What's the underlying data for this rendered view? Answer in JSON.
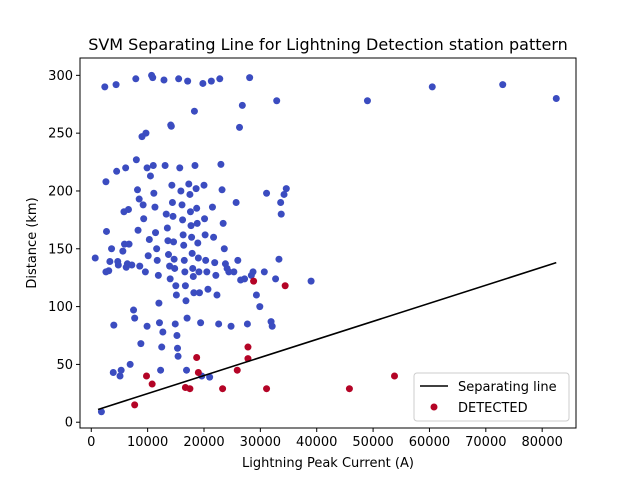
{
  "chart_data": {
    "type": "scatter",
    "title": "SVM Separating Line for Lightning Detection station pattern",
    "xlabel": "Lightning Peak Current (A)",
    "ylabel": "Distance (km)",
    "xlim": [
      -2000,
      86000
    ],
    "ylim": [
      -5,
      315
    ],
    "xticks": [
      0,
      10000,
      20000,
      30000,
      40000,
      50000,
      60000,
      70000,
      80000
    ],
    "yticks": [
      0,
      50,
      100,
      150,
      200,
      250,
      300
    ],
    "grid": false,
    "legend": {
      "position": "bottom-right",
      "entries": [
        "Separating line",
        "DETECTED"
      ]
    },
    "colors": {
      "not_detected": "#3b4cc0",
      "detected": "#b40426",
      "line": "#000000"
    },
    "separating_line": {
      "name": "Separating line",
      "x": [
        1200,
        82500
      ],
      "y": [
        11,
        138
      ]
    },
    "series": [
      {
        "name": "DETECTED",
        "color": "#b40426",
        "points": [
          [
            7700,
            15
          ],
          [
            9800,
            40
          ],
          [
            10800,
            33
          ],
          [
            16700,
            30
          ],
          [
            17500,
            29
          ],
          [
            18700,
            56
          ],
          [
            19000,
            43
          ],
          [
            23300,
            29
          ],
          [
            25900,
            45
          ],
          [
            27800,
            65
          ],
          [
            27800,
            55
          ],
          [
            28800,
            122
          ],
          [
            31100,
            29
          ],
          [
            34400,
            118
          ],
          [
            45800,
            29
          ],
          [
            53800,
            40
          ]
        ]
      },
      {
        "name": "",
        "color": "#3b4cc0",
        "points": [
          [
            1800,
            9
          ],
          [
            700,
            142
          ],
          [
            2400,
            290
          ],
          [
            2600,
            208
          ],
          [
            2700,
            165
          ],
          [
            2600,
            130
          ],
          [
            3100,
            131
          ],
          [
            3300,
            139
          ],
          [
            3600,
            150
          ],
          [
            4000,
            84
          ],
          [
            3900,
            43
          ],
          [
            4400,
            292
          ],
          [
            4500,
            217
          ],
          [
            4700,
            139
          ],
          [
            4800,
            136
          ],
          [
            5100,
            40
          ],
          [
            5300,
            45
          ],
          [
            5600,
            148
          ],
          [
            5800,
            182
          ],
          [
            5900,
            154
          ],
          [
            6100,
            220
          ],
          [
            6200,
            134
          ],
          [
            6400,
            137
          ],
          [
            6600,
            184
          ],
          [
            6700,
            154
          ],
          [
            6900,
            50
          ],
          [
            7200,
            136
          ],
          [
            7500,
            97
          ],
          [
            7700,
            90
          ],
          [
            7900,
            297
          ],
          [
            8000,
            227
          ],
          [
            8200,
            201
          ],
          [
            8300,
            166
          ],
          [
            8500,
            193
          ],
          [
            8600,
            135
          ],
          [
            8800,
            68
          ],
          [
            9000,
            247
          ],
          [
            9200,
            188
          ],
          [
            9300,
            176
          ],
          [
            9600,
            130
          ],
          [
            9700,
            250
          ],
          [
            9900,
            83
          ],
          [
            9900,
            220
          ],
          [
            10100,
            144
          ],
          [
            10300,
            158
          ],
          [
            10500,
            213
          ],
          [
            10700,
            300
          ],
          [
            10900,
            298
          ],
          [
            11000,
            222
          ],
          [
            11100,
            198
          ],
          [
            11300,
            186
          ],
          [
            11400,
            164
          ],
          [
            11600,
            150
          ],
          [
            11700,
            140
          ],
          [
            11900,
            127
          ],
          [
            12000,
            103
          ],
          [
            12100,
            86
          ],
          [
            12300,
            45
          ],
          [
            12500,
            65
          ],
          [
            12700,
            78
          ],
          [
            12900,
            296
          ],
          [
            13100,
            222
          ],
          [
            13300,
            180
          ],
          [
            13500,
            168
          ],
          [
            13600,
            157
          ],
          [
            13700,
            145
          ],
          [
            13900,
            135
          ],
          [
            14000,
            124
          ],
          [
            14100,
            257
          ],
          [
            14200,
            256
          ],
          [
            14300,
            205
          ],
          [
            14400,
            190
          ],
          [
            14500,
            178
          ],
          [
            14600,
            156
          ],
          [
            14700,
            141
          ],
          [
            14800,
            133
          ],
          [
            14900,
            85
          ],
          [
            15000,
            118
          ],
          [
            15100,
            110
          ],
          [
            15200,
            75
          ],
          [
            15300,
            64
          ],
          [
            15400,
            57
          ],
          [
            15500,
            297
          ],
          [
            15700,
            220
          ],
          [
            15900,
            200
          ],
          [
            16100,
            188
          ],
          [
            16200,
            175
          ],
          [
            16300,
            162
          ],
          [
            16400,
            153
          ],
          [
            16500,
            140
          ],
          [
            16600,
            130
          ],
          [
            16700,
            118
          ],
          [
            16800,
            105
          ],
          [
            16900,
            45
          ],
          [
            17000,
            90
          ],
          [
            17100,
            295
          ],
          [
            17300,
            206
          ],
          [
            17500,
            197
          ],
          [
            17600,
            182
          ],
          [
            17700,
            170
          ],
          [
            17800,
            160
          ],
          [
            17900,
            146
          ],
          [
            18000,
            133
          ],
          [
            18100,
            126
          ],
          [
            18200,
            112
          ],
          [
            18300,
            269
          ],
          [
            18400,
            222
          ],
          [
            18600,
            202
          ],
          [
            18700,
            185
          ],
          [
            18800,
            172
          ],
          [
            18900,
            155
          ],
          [
            19000,
            142
          ],
          [
            19100,
            130
          ],
          [
            19200,
            112
          ],
          [
            19400,
            86
          ],
          [
            19600,
            40
          ],
          [
            19800,
            293
          ],
          [
            20000,
            205
          ],
          [
            20100,
            176
          ],
          [
            20200,
            162
          ],
          [
            20300,
            140
          ],
          [
            20500,
            130
          ],
          [
            20700,
            115
          ],
          [
            21000,
            39
          ],
          [
            21300,
            295
          ],
          [
            21500,
            186
          ],
          [
            21700,
            160
          ],
          [
            21900,
            138
          ],
          [
            22100,
            127
          ],
          [
            22300,
            110
          ],
          [
            22600,
            85
          ],
          [
            22800,
            297
          ],
          [
            23000,
            223
          ],
          [
            23200,
            201
          ],
          [
            23400,
            172
          ],
          [
            23600,
            150
          ],
          [
            23800,
            137
          ],
          [
            24100,
            133
          ],
          [
            24400,
            130
          ],
          [
            24800,
            83
          ],
          [
            25300,
            130
          ],
          [
            25700,
            190
          ],
          [
            26000,
            140
          ],
          [
            26300,
            255
          ],
          [
            26500,
            123
          ],
          [
            26800,
            274
          ],
          [
            27200,
            124
          ],
          [
            27700,
            85
          ],
          [
            28100,
            298
          ],
          [
            28400,
            127
          ],
          [
            28700,
            130
          ],
          [
            29300,
            110
          ],
          [
            29900,
            100
          ],
          [
            30700,
            130
          ],
          [
            31100,
            198
          ],
          [
            31900,
            87
          ],
          [
            32100,
            83
          ],
          [
            32700,
            124
          ],
          [
            32900,
            278
          ],
          [
            33300,
            141
          ],
          [
            33600,
            190
          ],
          [
            33700,
            180
          ],
          [
            34200,
            197
          ],
          [
            34600,
            202
          ],
          [
            39000,
            122
          ],
          [
            49000,
            278
          ],
          [
            60500,
            290
          ],
          [
            73000,
            292
          ],
          [
            82500,
            280
          ]
        ]
      }
    ]
  }
}
